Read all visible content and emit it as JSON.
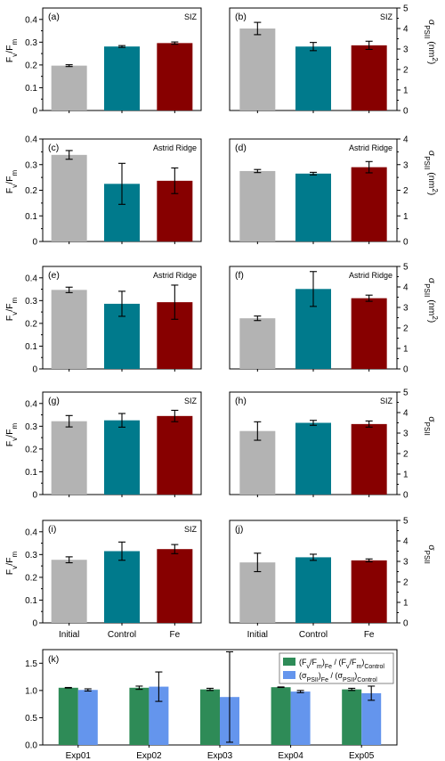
{
  "colors": {
    "Initial": "#b3b3b3",
    "Control": "#007a8c",
    "Fe": "#870000",
    "ratio_fvfm": "#2e8b57",
    "ratio_sigma": "#6495ed",
    "axis": "#000000"
  },
  "axis_text": {
    "fvfm_main": "F",
    "fvfm_sub1": "v",
    "fvfm_mid": "/F",
    "fvfm_sub2": "m",
    "sigma_main": "σ",
    "sigma_sub": "PSII",
    "sigma_unit_open": " (nm",
    "sigma_unit_close": ")",
    "sigma_sup": "2"
  },
  "chart_data": [
    {
      "type": "bar",
      "panel": "(a)",
      "site": "SIZ",
      "ylabel": "Fv/Fm",
      "ylim": [
        0,
        0.45
      ],
      "yticks": [
        0,
        0.1,
        0.2,
        0.3,
        0.4
      ],
      "yticklabels": [
        "0",
        "0.1",
        "0.2",
        "0.3",
        "0.4"
      ],
      "categories": [
        "Initial",
        "Control",
        "Fe"
      ],
      "values": [
        0.197,
        0.281,
        0.296
      ],
      "errors": [
        0.004,
        0.004,
        0.005
      ]
    },
    {
      "type": "bar",
      "panel": "(b)",
      "site": "SIZ",
      "ylabel": "σPSII (nm2)",
      "ylim": [
        0,
        5
      ],
      "yticks": [
        0,
        1,
        2,
        3,
        4,
        5
      ],
      "yticklabels": [
        "0",
        "1",
        "2",
        "3",
        "4",
        "5"
      ],
      "categories": [
        "Initial",
        "Control",
        "Fe"
      ],
      "values": [
        4.0,
        3.12,
        3.18
      ],
      "errors": [
        0.3,
        0.2,
        0.2
      ]
    },
    {
      "type": "bar",
      "panel": "(c)",
      "site": "Astrid Ridge",
      "ylabel": "Fv/Fm",
      "ylim": [
        0,
        0.4
      ],
      "yticks": [
        0,
        0.1,
        0.2,
        0.3,
        0.4
      ],
      "yticklabels": [
        "0",
        "0.1",
        "0.2",
        "0.3",
        "0.4"
      ],
      "categories": [
        "Initial",
        "Control",
        "Fe"
      ],
      "values": [
        0.338,
        0.225,
        0.237
      ],
      "errors": [
        0.017,
        0.08,
        0.05
      ]
    },
    {
      "type": "bar",
      "panel": "(d)",
      "site": "Astrid Ridge",
      "ylabel": "σPSII (nm2)",
      "ylim": [
        0,
        4
      ],
      "yticks": [
        0,
        1,
        2,
        3,
        4
      ],
      "yticklabels": [
        "0",
        "1",
        "2",
        "3",
        "4"
      ],
      "categories": [
        "Initial",
        "Control",
        "Fe"
      ],
      "values": [
        2.75,
        2.65,
        2.9
      ],
      "errors": [
        0.06,
        0.05,
        0.22
      ]
    },
    {
      "type": "bar",
      "panel": "(e)",
      "site": "Astrid Ridge",
      "ylabel": "Fv/Fm",
      "ylim": [
        0,
        0.45
      ],
      "yticks": [
        0,
        0.1,
        0.2,
        0.3,
        0.4
      ],
      "yticklabels": [
        "0",
        "0.1",
        "0.2",
        "0.3",
        "0.4"
      ],
      "categories": [
        "Initial",
        "Control",
        "Fe"
      ],
      "values": [
        0.347,
        0.286,
        0.293
      ],
      "errors": [
        0.012,
        0.055,
        0.075
      ]
    },
    {
      "type": "bar",
      "panel": "(f)",
      "site": "Astrid Ridge",
      "ylabel": "σPSII (nm2)",
      "ylim": [
        0,
        5
      ],
      "yticks": [
        0,
        1,
        2,
        3,
        4,
        5
      ],
      "yticklabels": [
        "0",
        "1",
        "2",
        "3",
        "4",
        "5"
      ],
      "categories": [
        "Initial",
        "Control",
        "Fe"
      ],
      "values": [
        2.47,
        3.9,
        3.45
      ],
      "errors": [
        0.11,
        0.85,
        0.15
      ]
    },
    {
      "type": "bar",
      "panel": "(g)",
      "site": "SIZ",
      "ylabel": "Fv/Fm",
      "ylim": [
        0,
        0.45
      ],
      "yticks": [
        0,
        0.1,
        0.2,
        0.3,
        0.4
      ],
      "yticklabels": [
        "0",
        "0.1",
        "0.2",
        "0.3",
        "0.4"
      ],
      "categories": [
        "Initial",
        "Control",
        "Fe"
      ],
      "values": [
        0.322,
        0.326,
        0.345
      ],
      "errors": [
        0.025,
        0.03,
        0.025
      ]
    },
    {
      "type": "bar",
      "panel": "(h)",
      "site": "SIZ",
      "ylabel": "σPSII",
      "ylim": [
        0,
        5
      ],
      "yticks": [
        0,
        1,
        2,
        3,
        4,
        5
      ],
      "yticklabels": [
        "0",
        "1",
        "2",
        "3",
        "4",
        "5"
      ],
      "categories": [
        "Initial",
        "Control",
        "Fe"
      ],
      "values": [
        3.1,
        3.5,
        3.44
      ],
      "errors": [
        0.45,
        0.12,
        0.15
      ]
    },
    {
      "type": "bar",
      "panel": "(i)",
      "site": "SIZ",
      "ylabel": "Fv/Fm",
      "ylim": [
        0,
        0.45
      ],
      "yticks": [
        0,
        0.1,
        0.2,
        0.3,
        0.4
      ],
      "yticklabels": [
        "0",
        "0.1",
        "0.2",
        "0.3",
        "0.4"
      ],
      "categories": [
        "Initial",
        "Control",
        "Fe"
      ],
      "values": [
        0.277,
        0.315,
        0.324
      ],
      "errors": [
        0.013,
        0.04,
        0.02
      ]
    },
    {
      "type": "bar",
      "panel": "(j)",
      "site": "",
      "ylabel": "σPSII",
      "ylim": [
        0,
        5
      ],
      "yticks": [
        0,
        1,
        2,
        3,
        4,
        5
      ],
      "yticklabels": [
        "0",
        "1",
        "2",
        "3",
        "4",
        "5"
      ],
      "categories": [
        "Initial",
        "Control",
        "Fe"
      ],
      "values": [
        2.95,
        3.2,
        3.05
      ],
      "errors": [
        0.45,
        0.15,
        0.07
      ]
    },
    {
      "type": "bar",
      "panel": "(k)",
      "ylim": [
        0,
        1.75
      ],
      "yticks": [
        0,
        0.5,
        1.0,
        1.5
      ],
      "yticklabels": [
        "0.0",
        "0.5",
        "1.0",
        "1.5"
      ],
      "categories": [
        "Exp01",
        "Exp02",
        "Exp03",
        "Exp04",
        "Exp05"
      ],
      "series": [
        {
          "name": "(Fv/Fm)Fe / (Fv/Fm)Control",
          "values": [
            1.05,
            1.05,
            1.02,
            1.06,
            1.02
          ],
          "errors": [
            0.005,
            0.03,
            0.02,
            0.005,
            0.02
          ]
        },
        {
          "name": "(σPSII)Fe / (σPSII)Control",
          "values": [
            1.01,
            1.07,
            0.88,
            0.98,
            0.95
          ],
          "errors": [
            0.02,
            0.27,
            0.83,
            0.02,
            0.13
          ]
        }
      ],
      "legend": "top-right"
    }
  ]
}
